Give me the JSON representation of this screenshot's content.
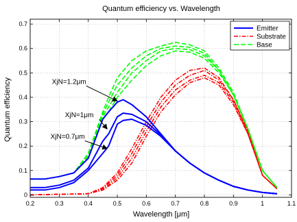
{
  "chart_data": {
    "type": "line",
    "title": "Quantum efficiency vs. Wavelength",
    "xlabel": "Wavelength [μm]",
    "ylabel": "Quantum efficiency",
    "xlim": [
      0.2,
      1.1
    ],
    "ylim": [
      -0.01,
      0.72
    ],
    "xticks": [
      "0.2",
      "0.3",
      "0.4",
      "0.5",
      "0.6",
      "0.7",
      "0.8",
      "0.9",
      "1",
      "1.1"
    ],
    "xtick_values": [
      0.2,
      0.3,
      0.4,
      0.5,
      0.6,
      0.7,
      0.8,
      0.9,
      1.0,
      1.1
    ],
    "yticks": [
      "0",
      "0.1",
      "0.2",
      "0.3",
      "0.4",
      "0.5",
      "0.6",
      "0.7"
    ],
    "ytick_values": [
      0,
      0.1,
      0.2,
      0.3,
      0.4,
      0.5,
      0.6,
      0.7
    ],
    "grid": true,
    "legend_position": "top-right",
    "legend": [
      {
        "label": "Emitter",
        "color": "#0000ff",
        "style": "solid"
      },
      {
        "label": "Substrate",
        "color": "#ff0000",
        "style": "dashdot"
      },
      {
        "label": "Base",
        "color": "#00ff00",
        "style": "dashed"
      }
    ],
    "annotations": [
      {
        "text": "XjN=1.2μm",
        "text_at": [
          0.275,
          0.455
        ],
        "arrow_to": [
          0.5,
          0.385
        ]
      },
      {
        "text": "XjN=1μm",
        "text_at": [
          0.32,
          0.318
        ],
        "arrow_to": [
          0.465,
          0.27
        ]
      },
      {
        "text": "XjN=0.7μm",
        "text_at": [
          0.27,
          0.23
        ],
        "arrow_to": [
          0.465,
          0.19
        ]
      }
    ],
    "series": [
      {
        "group": "Substrate",
        "color": "#ff0000",
        "style": "dashdot",
        "x": [
          0.2,
          0.4,
          0.45,
          0.5,
          0.55,
          0.6,
          0.65,
          0.7,
          0.75,
          0.8,
          0.85,
          0.9,
          0.95,
          1.0,
          1.05
        ],
        "y": [
          0.0,
          0.005,
          0.02,
          0.06,
          0.13,
          0.24,
          0.34,
          0.41,
          0.46,
          0.48,
          0.45,
          0.37,
          0.25,
          0.08,
          0.025
        ]
      },
      {
        "group": "Substrate",
        "color": "#ff0000",
        "style": "dashdot",
        "x": [
          0.2,
          0.4,
          0.45,
          0.5,
          0.55,
          0.6,
          0.65,
          0.7,
          0.75,
          0.8,
          0.85,
          0.9,
          0.95,
          1.0,
          1.05
        ],
        "y": [
          0.0,
          0.005,
          0.02,
          0.07,
          0.15,
          0.26,
          0.36,
          0.43,
          0.47,
          0.49,
          0.46,
          0.38,
          0.25,
          0.08,
          0.025
        ]
      },
      {
        "group": "Substrate",
        "color": "#ff0000",
        "style": "dashdot",
        "x": [
          0.2,
          0.4,
          0.45,
          0.5,
          0.55,
          0.6,
          0.65,
          0.7,
          0.75,
          0.8,
          0.85,
          0.9,
          0.95,
          1.0,
          1.05
        ],
        "y": [
          0.0,
          0.005,
          0.025,
          0.08,
          0.17,
          0.28,
          0.38,
          0.45,
          0.49,
          0.51,
          0.47,
          0.39,
          0.26,
          0.08,
          0.025
        ]
      },
      {
        "group": "Substrate",
        "color": "#ff0000",
        "style": "dashdot",
        "x": [
          0.2,
          0.4,
          0.45,
          0.5,
          0.55,
          0.6,
          0.65,
          0.7,
          0.75,
          0.8,
          0.85,
          0.9,
          0.95,
          1.0,
          1.05
        ],
        "y": [
          0.0,
          0.005,
          0.03,
          0.09,
          0.19,
          0.3,
          0.4,
          0.47,
          0.51,
          0.52,
          0.48,
          0.39,
          0.26,
          0.08,
          0.025
        ]
      },
      {
        "group": "Base",
        "color": "#00ff00",
        "style": "dashed",
        "x": [
          0.2,
          0.25,
          0.3,
          0.35,
          0.4,
          0.45,
          0.47,
          0.5,
          0.55,
          0.6,
          0.65,
          0.7,
          0.75,
          0.8,
          0.85,
          0.9,
          0.95,
          1.0,
          1.05
        ],
        "y": [
          0.065,
          0.065,
          0.075,
          0.09,
          0.15,
          0.31,
          0.34,
          0.4,
          0.47,
          0.53,
          0.57,
          0.59,
          0.585,
          0.56,
          0.5,
          0.41,
          0.27,
          0.1,
          0.03
        ]
      },
      {
        "group": "Base",
        "color": "#00ff00",
        "style": "dashed",
        "x": [
          0.2,
          0.25,
          0.3,
          0.35,
          0.4,
          0.45,
          0.47,
          0.5,
          0.55,
          0.6,
          0.65,
          0.7,
          0.75,
          0.8,
          0.85,
          0.9,
          0.95,
          1.0,
          1.05
        ],
        "y": [
          0.065,
          0.065,
          0.075,
          0.09,
          0.16,
          0.32,
          0.36,
          0.42,
          0.5,
          0.55,
          0.59,
          0.6,
          0.595,
          0.57,
          0.51,
          0.41,
          0.27,
          0.1,
          0.03
        ]
      },
      {
        "group": "Base",
        "color": "#00ff00",
        "style": "dashed",
        "x": [
          0.2,
          0.25,
          0.3,
          0.35,
          0.4,
          0.45,
          0.47,
          0.5,
          0.55,
          0.6,
          0.65,
          0.7,
          0.75,
          0.8,
          0.85,
          0.9,
          0.95,
          1.0,
          1.05
        ],
        "y": [
          0.065,
          0.065,
          0.075,
          0.09,
          0.16,
          0.33,
          0.38,
          0.45,
          0.52,
          0.57,
          0.6,
          0.61,
          0.605,
          0.58,
          0.51,
          0.41,
          0.27,
          0.1,
          0.03
        ]
      },
      {
        "group": "Base",
        "color": "#00ff00",
        "style": "dashed",
        "x": [
          0.2,
          0.25,
          0.3,
          0.35,
          0.4,
          0.45,
          0.47,
          0.5,
          0.55,
          0.6,
          0.65,
          0.7,
          0.75,
          0.8,
          0.85,
          0.9,
          0.95,
          1.0,
          1.05
        ],
        "y": [
          0.065,
          0.065,
          0.075,
          0.09,
          0.17,
          0.34,
          0.4,
          0.48,
          0.55,
          0.59,
          0.61,
          0.625,
          0.615,
          0.59,
          0.52,
          0.42,
          0.27,
          0.1,
          0.03
        ]
      },
      {
        "group": "Emitter",
        "color": "#0000ff",
        "style": "solid",
        "x": [
          0.2,
          0.25,
          0.3,
          0.35,
          0.4,
          0.45,
          0.47,
          0.5,
          0.52,
          0.55,
          0.6,
          0.65,
          0.7,
          0.75,
          0.8,
          0.85,
          0.9,
          0.95,
          1.0,
          1.05
        ],
        "y": [
          0.065,
          0.065,
          0.075,
          0.09,
          0.15,
          0.31,
          0.34,
          0.38,
          0.39,
          0.37,
          0.32,
          0.25,
          0.18,
          0.13,
          0.09,
          0.06,
          0.035,
          0.02,
          0.01,
          0.005
        ]
      },
      {
        "group": "Emitter",
        "color": "#0000ff",
        "style": "solid",
        "x": [
          0.2,
          0.25,
          0.3,
          0.35,
          0.4,
          0.45,
          0.47,
          0.5,
          0.52,
          0.55,
          0.6,
          0.65,
          0.7,
          0.75,
          0.8,
          0.85,
          0.9,
          0.95,
          1.0,
          1.05
        ],
        "y": [
          0.03,
          0.03,
          0.04,
          0.06,
          0.11,
          0.22,
          0.25,
          0.32,
          0.335,
          0.33,
          0.3,
          0.245,
          0.18,
          0.13,
          0.09,
          0.06,
          0.035,
          0.02,
          0.01,
          0.005
        ]
      },
      {
        "group": "Emitter",
        "color": "#0000ff",
        "style": "solid",
        "x": [
          0.2,
          0.25,
          0.3,
          0.35,
          0.4,
          0.45,
          0.47,
          0.5,
          0.52,
          0.55,
          0.6,
          0.65,
          0.7,
          0.75,
          0.8,
          0.85,
          0.9,
          0.95,
          1.0,
          1.05
        ],
        "y": [
          0.02,
          0.02,
          0.03,
          0.05,
          0.1,
          0.17,
          0.2,
          0.29,
          0.305,
          0.31,
          0.285,
          0.24,
          0.18,
          0.13,
          0.09,
          0.06,
          0.035,
          0.02,
          0.01,
          0.005
        ]
      }
    ]
  }
}
